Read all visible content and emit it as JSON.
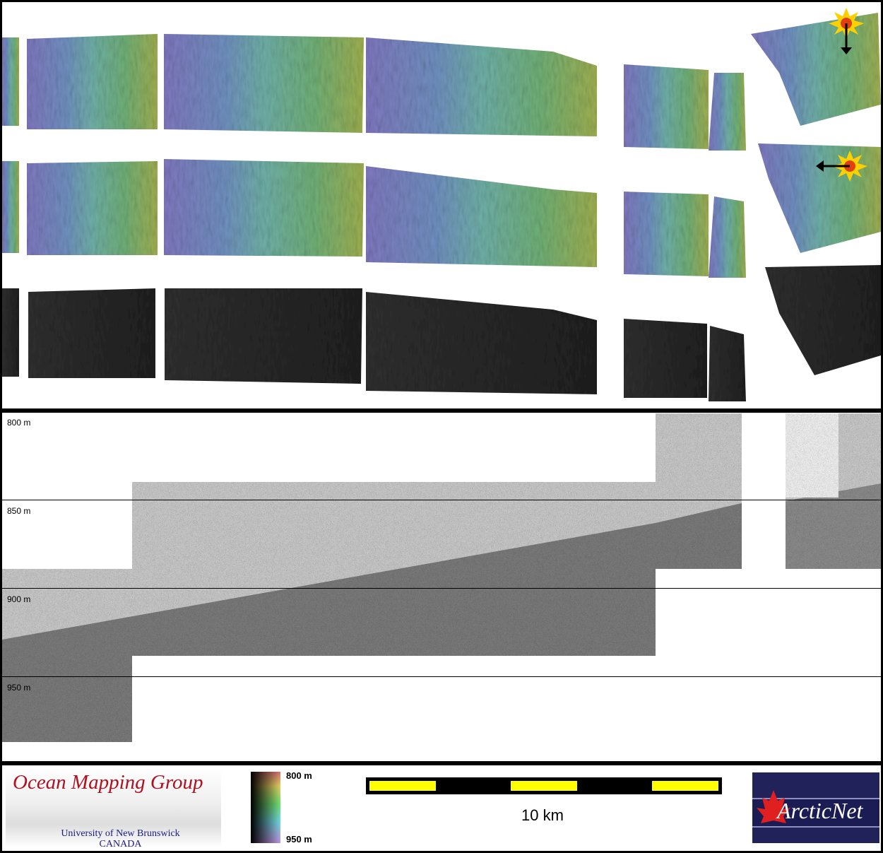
{
  "profile": {
    "depth_labels": [
      "800 m",
      "850 m",
      "900 m",
      "950 m"
    ]
  },
  "legend": {
    "colorbar_top": "800 m",
    "colorbar_bottom": "950 m",
    "scale_label": "10 km",
    "scale_bar_colors": [
      "#ffff00",
      "#000000"
    ]
  },
  "logos": {
    "omg_title": "Ocean Mapping Group",
    "omg_university": "University of New Brunswick",
    "omg_country": "CANADA",
    "arcticnet": "ArcticNet"
  },
  "icons": {
    "sun_top": "sun-illumination-icon",
    "sun_middle": "sun-illumination-icon"
  },
  "colors": {
    "shallow": "#5fa040",
    "deep": "#7a70b8",
    "backscatter": "#1a1a1a"
  }
}
